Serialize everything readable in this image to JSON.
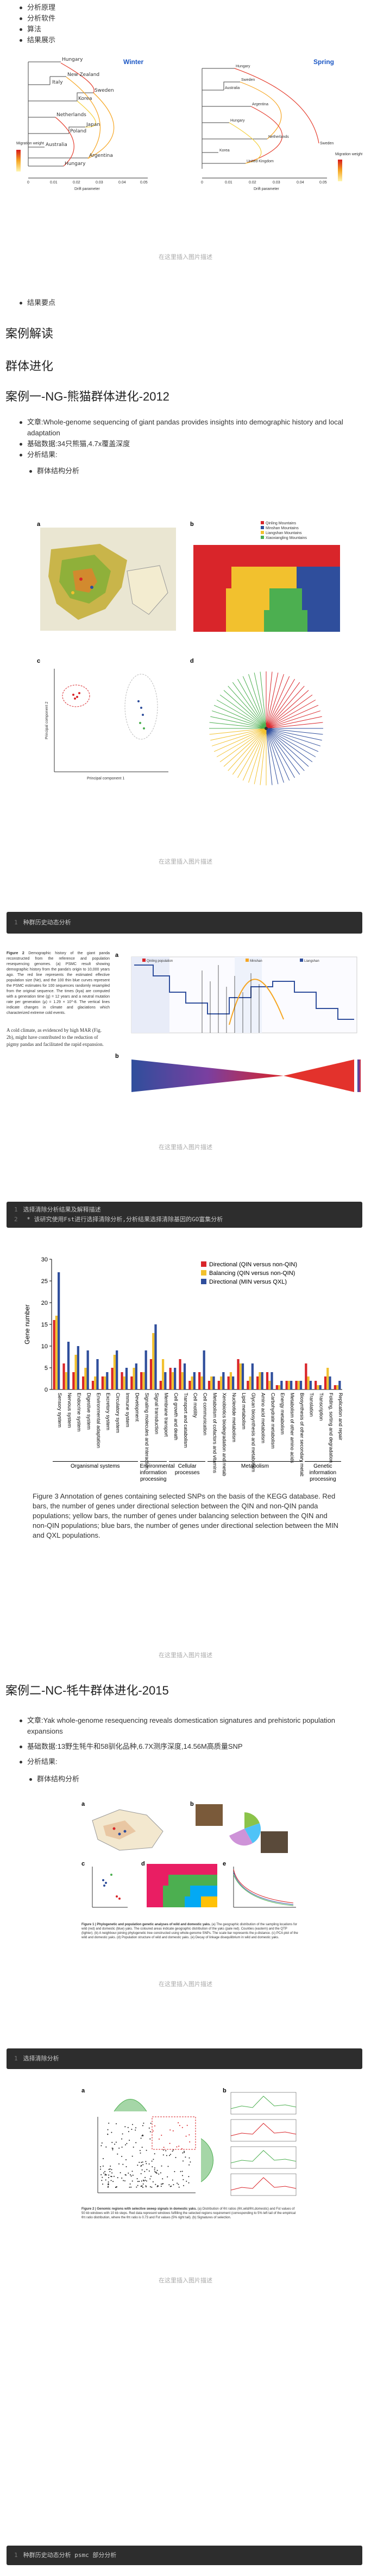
{
  "top_list": [
    "分析原理",
    "分析软件",
    "算法",
    "结果展示"
  ],
  "fig1": {
    "left_title": "Winter",
    "right_title": "Spring",
    "left_cities": [
      "Hungary",
      "Italy",
      "New Zealand",
      "Sweden",
      "Korea",
      "Netherlands",
      "Japan",
      "Poland",
      "Australia",
      "Argentina",
      "Hungary",
      "Sweden",
      "Zambia"
    ],
    "right_cities": [
      "Hungary",
      "Australia",
      "Sweden",
      "Argentina",
      "Hungary",
      "Netherlands",
      "Korea",
      "United Kingdom",
      "Sweden"
    ],
    "legend_title": "Migration weight",
    "legend_scale": [
      "1.0",
      "0.5",
      "0"
    ],
    "x_axis_label": "Drift parameter",
    "x_ticks": [
      "0",
      "0.01",
      "0.02",
      "0.03",
      "0.04",
      "0.05"
    ],
    "caption": "在这里插入图片描述"
  },
  "after_fig1_list": [
    "结果要点"
  ],
  "section_title": "案例解读",
  "subsection_title": "群体进化",
  "case1": {
    "title": "案例一-NG-熊猫群体进化-2012",
    "items": [
      "文章:Whole-genome sequencing of giant pandas provides insights into demographic history and local adaptation",
      "基础数据:34只熊猫,4.7x覆盖深度",
      "分析结果:"
    ],
    "sub_items": [
      "群体结构分析"
    ],
    "fig_a_label": "a",
    "fig_b_label": "b",
    "fig_c_label": "c",
    "fig_d_label": "d",
    "fig_b_legend": [
      "Qinling Mountains",
      "Minshan Mountains",
      "Liangshan Mountains",
      "Xiaoxiangling Mountains"
    ],
    "fig_c_axis": [
      "Principal component 1",
      "Principal component 2"
    ],
    "caption": "在这里插入图片描述"
  },
  "code1": {
    "line": "1",
    "text": "种群历史动态分析"
  },
  "fig3_caption": "在这里插入图片描述",
  "fig3_panel_a_label": "a",
  "fig3_panel_b_label": "b",
  "fig3_legend": [
    "Qinling population",
    "Minshan",
    "Liangshan"
  ],
  "fig3_left_text_heading": "Figure 2",
  "fig3_left_text": "Demographic history of the giant panda reconstructed from the reference and population resequencing genomes. (a) PSMC result showing demographic history from the panda's origin to 10,000 years ago. The red line represents the estimated effective population size (Ne), and the 100 thin blue curves represent the PSMC estimates for 100 sequences randomly resampled from the original sequence. The times (kya) are computed with a generation time (g) = 12 years and a neutral mutation rate per generation (μ) = 1.29 × 10^-8. The vertical lines indicate changes in climate and glaciations which characterized extreme cold events.",
  "fig3_left_text2": "A cold climate, as evidenced by high MAR (Fig. 2b), might have contributed to the reduction of pigmy pandas and facilitated the rapid expansion.",
  "code2": {
    "lines": [
      {
        "n": "1",
        "t": "选择清除分析结果及解释描述"
      },
      {
        "n": "2",
        "t": "  * 该研究使用Fst进行选择清除分析,分析结果选择清除基因的GO富集分析"
      }
    ]
  },
  "chart_data": {
    "type": "bar",
    "title": "",
    "ylabel": "Gene number",
    "xlabel": "",
    "legend_position": "top-right",
    "series": [
      {
        "name": "Directional (QIN versus non-QIN)",
        "color": "#d9252a"
      },
      {
        "name": "Balancing (QIN versus non-QIN)",
        "color": "#f2c12e"
      },
      {
        "name": "Directional (MIN versus QXL)",
        "color": "#2f4e9c"
      }
    ],
    "ylim": [
      0,
      30
    ],
    "yticks": [
      0,
      5,
      10,
      15,
      20,
      25,
      30
    ],
    "categories": [
      "Sensory system",
      "Nervous system",
      "Endocrine system",
      "Digestive system",
      "Environmental adaptation",
      "Excretory system",
      "Circulatory system",
      "Immune system",
      "Development",
      "Signaling molecules and interaction",
      "Signal transduction",
      "Membrane transport",
      "Cell growth and death",
      "Transport and catabolism",
      "Cell motility",
      "Cell communication",
      "Metabolism of cofactors and vitamins",
      "Xenobiotics biodegradation and metabolism",
      "Nucleotide metabolism",
      "Lipid metabolism",
      "Glycan biosynthesis and metabolism",
      "Amino acid metabolism",
      "Carbohydrate metabolism",
      "Energy metabolism",
      "Metabolism of other amino acids",
      "Biosynthesis of other secondary metabolites",
      "Translation",
      "Transcription",
      "Folding, sorting and degradation",
      "Replication and repair"
    ],
    "values": [
      [
        16,
        6,
        4,
        3,
        2,
        3,
        5,
        4,
        3,
        4,
        7,
        2,
        5,
        7,
        2,
        4,
        2,
        2,
        3,
        7,
        2,
        3,
        4,
        1,
        2,
        2,
        6,
        2,
        3,
        1
      ],
      [
        17,
        4,
        8,
        5,
        3,
        3,
        8,
        3,
        5,
        4,
        13,
        7,
        4,
        4,
        3,
        3,
        3,
        3,
        4,
        6,
        3,
        4,
        2,
        1,
        2,
        2,
        3,
        1,
        5,
        1
      ],
      [
        27,
        11,
        10,
        9,
        7,
        4,
        9,
        5,
        6,
        9,
        15,
        4,
        5,
        6,
        4,
        9,
        3,
        4,
        3,
        6,
        6,
        4,
        4,
        2,
        2,
        2,
        2,
        1,
        3,
        2
      ]
    ],
    "groups": [
      {
        "name": "Organismal systems",
        "from": 0,
        "to": 8
      },
      {
        "name": "Environmental information processing",
        "from": 9,
        "to": 11
      },
      {
        "name": "Cellular processes",
        "from": 12,
        "to": 15
      },
      {
        "name": "Metabolism",
        "from": 16,
        "to": 25
      },
      {
        "name": "Genetic information processing",
        "from": 26,
        "to": 29
      }
    ],
    "figure_caption": "Figure 3 Annotation of genes containing selected SNPs on the basis of the KEGG database. Red bars, the number of genes under directional selection between the QIN and non-QIN panda populations; yellow bars, the number of genes under balancing selection between the QIN and non-QIN populations; blue bars, the number of genes under directional selection between the MIN and QXL populations."
  },
  "fig4_caption": "在这里插入图片描述",
  "case2": {
    "title": "案例二-NC-牦牛群体进化-2015",
    "items": [
      "文章:Yak whole-genome resequencing reveals domestication signatures and prehistoric population expansions",
      "基础数据:13野生牦牛和58驯化品种,6.7X测序深度,14.56M高质量SNP",
      "分析结果:"
    ],
    "sub_items": [
      "群体结构分析"
    ],
    "fig_caption_bold": "Figure 1 | Phylogenetic and population genetic analyses of wild and domestic yaks.",
    "fig_caption_rest": " (a) The geographic distribution of the sampling locations for wild (red) and domestic (blue) yaks. The coloured areas indicate geographic distribution of the yaks (pale red). Counties (eastern) and the QTP (lighter). (b) A neighbour-joining phylogenetic tree constructed using whole-genome SNPs. The scale bar represents the p-distance. (c) PCA plot of the wild and domestic yaks. (d) Population structure of wild and domestic yaks. (e) Decay of linkage disequilibrium in wild and domestic yaks.",
    "panels": [
      "a",
      "b",
      "c",
      "d",
      "e"
    ],
    "caption": "在这里插入图片描述"
  },
  "code3": {
    "line": "1",
    "text": "选择清除分析"
  },
  "fig6": {
    "fig_caption_bold": "Figure 2 | Genomic regions with selective sweep signals in domestic yaks.",
    "fig_caption_rest": " (a) Distribution of θπ ratios (θπ,wild/θπ,domestic) and Fst values of 50 kb windows with 10 kb steps. Red data represent windows fulfilling the selected regions requirement (corresponding to 5% left tail of the empirical θπ ratio distribution, where the θπ ratio is 0.73 and Fst values (5% right tail). (b) Signatures of selection.",
    "panel_a": "a",
    "panel_b": "b",
    "caption": "在这里插入图片描述"
  },
  "code4": {
    "line": "1",
    "text": "种群历史动态分析 psmc 部分分析"
  }
}
